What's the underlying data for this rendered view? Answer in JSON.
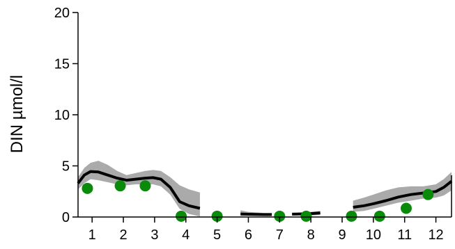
{
  "chart_data": {
    "type": "line",
    "ylabel": "DIN µmol/l",
    "xlabel": "",
    "xlim": [
      0.55,
      12.5
    ],
    "ylim": [
      0,
      20
    ],
    "x_ticks": [
      1,
      2,
      3,
      4,
      5,
      6,
      7,
      8,
      9,
      10,
      11,
      12
    ],
    "y_ticks": [
      0,
      5,
      10,
      15,
      20
    ],
    "grid": false,
    "colors": {
      "line": "#000000",
      "band": "#aaaaaa",
      "points": "#0a8a0a"
    },
    "fit_segments": [
      {
        "x": [
          0.55,
          0.75,
          0.95,
          1.2,
          1.5,
          1.8,
          2.1,
          2.4,
          2.7,
          2.95,
          3.2,
          3.5,
          3.8,
          4.1,
          4.45
        ],
        "y": [
          3.3,
          4.1,
          4.45,
          4.4,
          4.1,
          3.8,
          3.6,
          3.7,
          3.8,
          3.85,
          3.7,
          2.9,
          1.5,
          1.1,
          0.85
        ],
        "lower": [
          2.7,
          3.3,
          3.7,
          3.6,
          3.4,
          3.2,
          3.1,
          3.2,
          3.2,
          3.2,
          3.0,
          2.2,
          0.8,
          0.3,
          0.05
        ],
        "upper": [
          3.9,
          4.8,
          5.3,
          5.5,
          5.1,
          4.5,
          4.1,
          4.3,
          4.5,
          4.6,
          4.5,
          3.9,
          3.1,
          2.7,
          2.4
        ]
      },
      {
        "x": [
          5.75,
          6.0,
          6.25,
          6.5,
          6.75
        ],
        "y": [
          0.3,
          0.27,
          0.25,
          0.24,
          0.24
        ],
        "lower": [
          0.1,
          0.1,
          0.1,
          0.1,
          0.1
        ],
        "upper": [
          0.65,
          0.5,
          0.45,
          0.4,
          0.4
        ]
      },
      {
        "x": [
          7.4,
          7.7,
          8.0,
          8.3
        ],
        "y": [
          0.28,
          0.3,
          0.33,
          0.4
        ],
        "lower": [
          0.15,
          0.15,
          0.15,
          0.2
        ],
        "upper": [
          0.4,
          0.45,
          0.5,
          0.6
        ]
      },
      {
        "x": [
          9.35,
          9.7,
          10.0,
          10.4,
          10.8,
          11.2,
          11.6,
          12.0,
          12.25,
          12.5
        ],
        "y": [
          0.95,
          1.1,
          1.3,
          1.6,
          1.95,
          2.2,
          2.35,
          2.5,
          2.9,
          3.5
        ],
        "lower": [
          0.5,
          0.6,
          0.8,
          1.1,
          1.4,
          1.6,
          1.8,
          1.9,
          2.1,
          2.6
        ],
        "upper": [
          1.6,
          1.9,
          2.2,
          2.6,
          2.9,
          3.0,
          3.0,
          3.2,
          3.7,
          4.4
        ]
      }
    ],
    "observations": {
      "x": [
        0.85,
        1.9,
        2.7,
        3.85,
        5.0,
        7.0,
        7.85,
        9.3,
        10.2,
        11.05,
        11.75
      ],
      "y": [
        2.8,
        3.05,
        3.05,
        0.08,
        0.08,
        0.08,
        0.08,
        0.08,
        0.08,
        0.85,
        2.2
      ]
    }
  }
}
